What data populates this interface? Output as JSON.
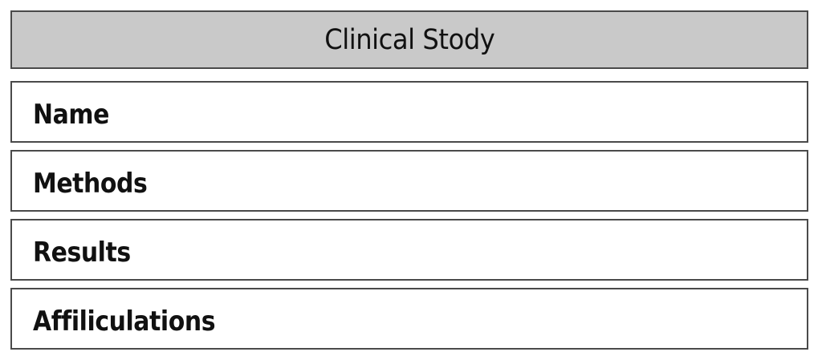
{
  "header": {
    "title": "Clinical Stody"
  },
  "rows": [
    {
      "label": "Name"
    },
    {
      "label": "Methods"
    },
    {
      "label": "Results"
    },
    {
      "label": "Affiliculations"
    }
  ],
  "colors": {
    "header_background": "#c9c9c9",
    "border": "#4a4a4a",
    "row_background": "#ffffff",
    "text": "#111111"
  }
}
